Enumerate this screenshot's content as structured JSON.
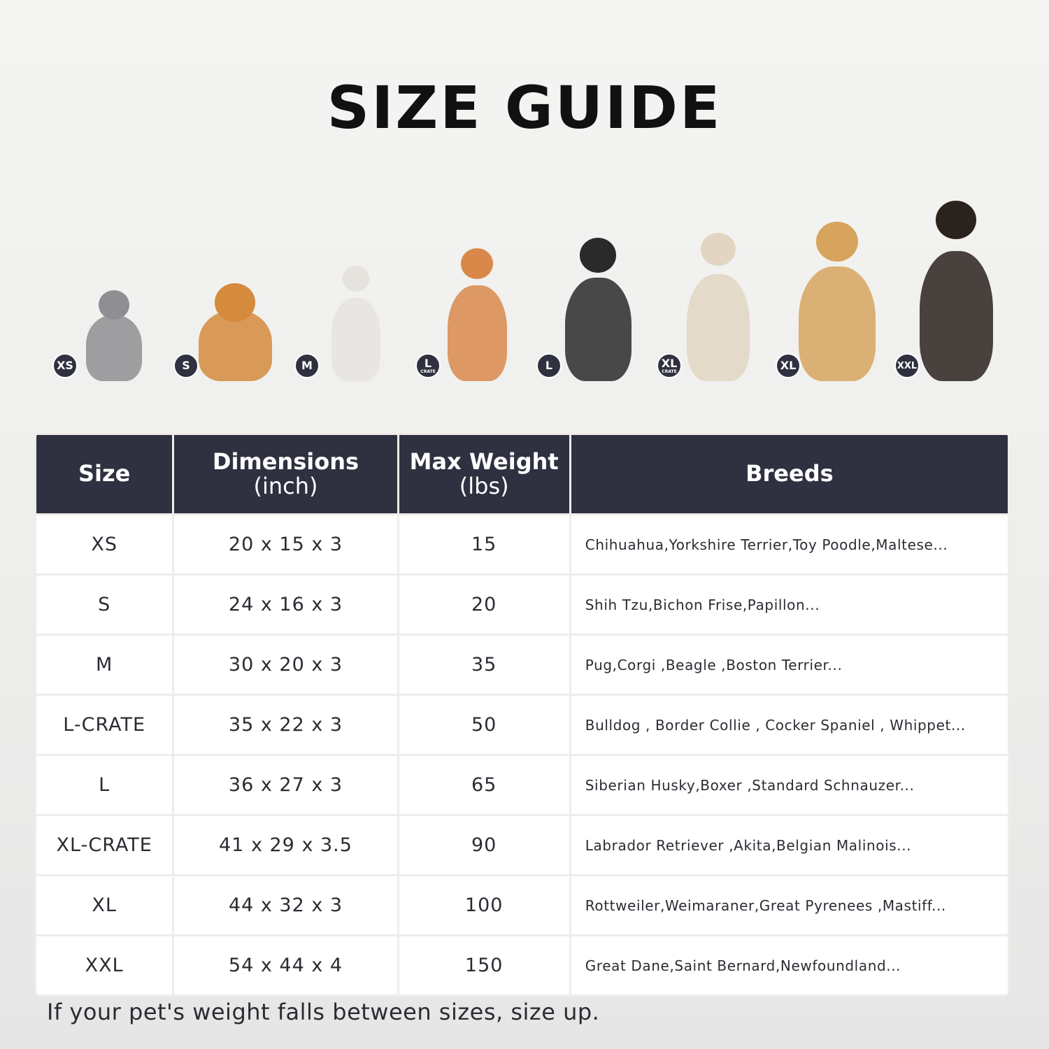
{
  "title": "SIZE GUIDE",
  "pets": [
    {
      "badge": "XS",
      "sub": "",
      "animal": "cat",
      "color": "#8f8f93"
    },
    {
      "badge": "S",
      "sub": "",
      "animal": "pomeranian",
      "color": "#d58a3c"
    },
    {
      "badge": "M",
      "sub": "",
      "animal": "french-bulldog",
      "color": "#e6e3df"
    },
    {
      "badge": "L",
      "sub": "CRATE",
      "animal": "shiba-inu",
      "color": "#d9884a"
    },
    {
      "badge": "L",
      "sub": "",
      "animal": "border-collie",
      "color": "#2a2a2a"
    },
    {
      "badge": "XL",
      "sub": "CRATE",
      "animal": "labrador",
      "color": "#e2d6c2"
    },
    {
      "badge": "XL",
      "sub": "",
      "animal": "golden-retriever",
      "color": "#d7a45e"
    },
    {
      "badge": "XXL",
      "sub": "",
      "animal": "doberman",
      "color": "#2a221d"
    }
  ],
  "table": {
    "headers": [
      [
        "Size",
        ""
      ],
      [
        "Dimensions",
        "(inch)"
      ],
      [
        "Max Weight",
        "(lbs)"
      ],
      [
        "Breeds",
        ""
      ]
    ],
    "rows": [
      [
        "XS",
        "20 x 15 x 3",
        "15",
        "Chihuahua,Yorkshire Terrier,Toy Poodle,Maltese..."
      ],
      [
        "S",
        "24 x 16 x 3",
        "20",
        "Shih Tzu,Bichon Frise,Papillon..."
      ],
      [
        "M",
        "30 x 20 x 3",
        "35",
        "Pug,Corgi ,Beagle ,Boston Terrier..."
      ],
      [
        "L-CRATE",
        "35 x 22 x 3",
        "50",
        "Bulldog , Border Collie , Cocker Spaniel , Whippet..."
      ],
      [
        "L",
        "36 x 27 x 3",
        "65",
        "Siberian Husky,Boxer ,Standard Schnauzer..."
      ],
      [
        "XL-CRATE",
        "41 x 29 x 3.5",
        "90",
        "Labrador Retriever ,Akita,Belgian Malinois..."
      ],
      [
        "XL",
        "44 x 32 x 3",
        "100",
        "Rottweiler,Weimaraner,Great Pyrenees ,Mastiff..."
      ],
      [
        "XXL",
        "54 x 44 x 4",
        "150",
        "Great Dane,Saint Bernard,Newfoundland..."
      ]
    ]
  },
  "note": "If your pet's weight falls between sizes, size up.",
  "colors": {
    "header_bg": "#2f3140",
    "badge_bg": "#2f3140"
  }
}
